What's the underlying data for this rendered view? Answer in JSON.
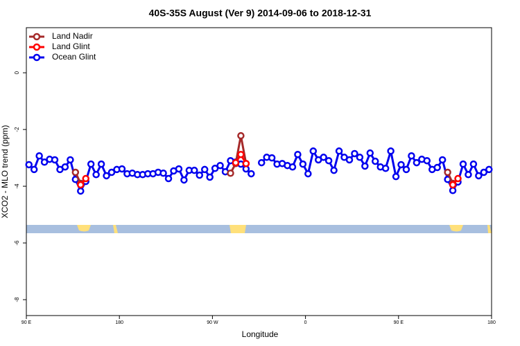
{
  "chart_data": {
    "type": "line",
    "title": "40S-35S August (Ver 9)   2014-09-06 to 2018-12-31",
    "x_label": "Longitude",
    "y_label": "XCO2 - MLO trend (ppm)",
    "x": [
      92.5,
      97.5,
      102.5,
      107.5,
      112.5,
      117.5,
      122.5,
      127.5,
      132.5,
      137.5,
      142.5,
      147.5,
      152.5,
      157.5,
      162.5,
      167.5,
      172.5,
      177.5,
      182.5,
      187.5,
      192.5,
      197.5,
      202.5,
      207.5,
      212.5,
      217.5,
      222.5,
      227.5,
      232.5,
      237.5,
      242.5,
      247.5,
      252.5,
      257.5,
      262.5,
      267.5,
      272.5,
      277.5,
      282.5,
      287.5,
      292.5,
      297.5,
      302.5,
      307.5,
      312.5,
      317.5,
      322.5,
      327.5,
      332.5,
      337.5,
      342.5,
      347.5,
      352.5,
      357.5,
      362.5,
      367.5,
      372.5,
      377.5,
      382.5,
      387.5,
      392.5,
      397.5,
      402.5,
      407.5,
      412.5,
      417.5,
      422.5,
      427.5,
      432.5,
      437.5,
      442.5,
      447.5,
      452.5,
      457.5,
      462.5,
      467.5,
      472.5,
      477.5,
      482.5,
      487.5,
      492.5,
      497.5,
      502.5,
      507.5,
      512.5,
      517.5,
      522.5,
      527.5,
      532.5,
      537.5
    ],
    "series": [
      {
        "name": "Ocean Glint",
        "color": "#0000ee",
        "values": [
          -3.24,
          -3.41,
          -2.93,
          -3.15,
          -3.05,
          -3.07,
          -3.41,
          -3.32,
          -3.07,
          -3.76,
          -4.17,
          -3.83,
          -3.22,
          -3.59,
          -3.22,
          -3.63,
          -3.51,
          -3.41,
          -3.39,
          -3.56,
          -3.54,
          -3.59,
          -3.59,
          -3.56,
          -3.56,
          -3.51,
          -3.54,
          -3.73,
          -3.46,
          -3.39,
          -3.78,
          -3.44,
          -3.44,
          -3.61,
          -3.41,
          -3.68,
          -3.37,
          -3.27,
          -3.49,
          -3.1,
          -3.15,
          -3.22,
          -3.39,
          -3.56,
          null,
          -3.17,
          -2.98,
          -3.0,
          -3.22,
          -3.2,
          -3.27,
          -3.32,
          -2.88,
          -3.22,
          -3.56,
          -2.76,
          -3.07,
          -2.98,
          -3.1,
          -3.44,
          -2.76,
          -2.98,
          -3.07,
          -2.85,
          -2.98,
          -3.29,
          -2.83,
          -3.12,
          -3.32,
          -3.37,
          -2.76,
          -3.66,
          -3.24,
          -3.41,
          -2.93,
          -3.17,
          -3.05,
          -3.1,
          -3.41,
          -3.34,
          -3.07,
          -3.76,
          -4.15,
          -3.85,
          -3.22,
          -3.59,
          -3.22,
          -3.63,
          -3.51,
          -3.41
        ]
      },
      {
        "name": "Land Nadir",
        "color": "#a52a2a",
        "values": [
          null,
          null,
          null,
          null,
          null,
          null,
          null,
          null,
          null,
          -3.51,
          -3.9,
          null,
          null,
          null,
          null,
          null,
          null,
          null,
          null,
          null,
          null,
          null,
          null,
          null,
          null,
          null,
          null,
          null,
          null,
          null,
          null,
          null,
          null,
          null,
          null,
          null,
          null,
          null,
          null,
          -3.54,
          -3.2,
          -2.22,
          -3.2,
          null,
          null,
          null,
          null,
          null,
          null,
          null,
          null,
          null,
          null,
          null,
          null,
          null,
          null,
          null,
          null,
          null,
          null,
          null,
          null,
          null,
          null,
          null,
          null,
          null,
          null,
          null,
          null,
          null,
          null,
          null,
          null,
          null,
          null,
          null,
          null,
          null,
          null,
          -3.51,
          -3.9,
          null,
          null,
          null,
          null,
          null,
          null,
          null
        ]
      },
      {
        "name": "Land Glint",
        "color": "#ff0000",
        "values": [
          null,
          null,
          null,
          null,
          null,
          null,
          null,
          null,
          null,
          null,
          -3.95,
          -3.73,
          null,
          null,
          null,
          null,
          null,
          null,
          null,
          null,
          null,
          null,
          null,
          null,
          null,
          null,
          null,
          null,
          null,
          null,
          null,
          null,
          null,
          null,
          null,
          null,
          null,
          null,
          null,
          null,
          -3.17,
          -2.88,
          -3.2,
          null,
          null,
          null,
          null,
          null,
          null,
          null,
          null,
          null,
          null,
          null,
          null,
          null,
          null,
          null,
          null,
          null,
          null,
          null,
          null,
          null,
          null,
          null,
          null,
          null,
          null,
          null,
          null,
          null,
          null,
          null,
          null,
          null,
          null,
          null,
          null,
          null,
          null,
          null,
          -3.95,
          -3.73,
          null,
          null,
          null,
          null,
          null,
          null
        ]
      }
    ],
    "legend_order": [
      1,
      2,
      0
    ],
    "xlim": [
      90,
      540
    ],
    "xticks": [
      {
        "value": 90,
        "label": "90 E"
      },
      180,
      {
        "value": 270,
        "label": "90 W"
      },
      {
        "value": 360,
        "label": "0"
      },
      {
        "value": 450,
        "label": "90 E"
      },
      {
        "value": 540,
        "label": "180"
      }
    ],
    "ylim": [
      -8.56,
      1.59
    ],
    "yticks": [
      -8,
      -6,
      -4,
      -2,
      0
    ],
    "legend": "top-left"
  }
}
